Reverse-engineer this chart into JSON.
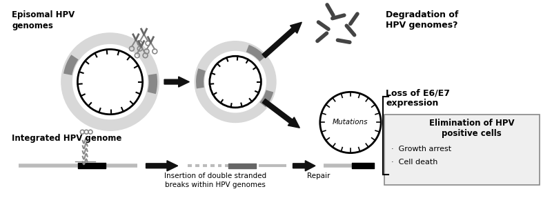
{
  "bg_color": "#ffffff",
  "fig_width": 8.0,
  "fig_height": 3.0,
  "dpi": 100,
  "episomal_label": "Episomal HPV\ngenomes",
  "integrated_label": "Integrated HPV genome",
  "degradation_label": "Degradation of\nHPV genomes?",
  "loss_label": "Loss of E6/E7\nexpression",
  "elimination_title": "Elimination of HPV\npositive cells",
  "bullet1": "Growth arrest",
  "bullet2": "Cell death",
  "insertion_label": "Insertion of double stranded\nbreaks within HPV genomes",
  "repair_label": "Repair",
  "mutations_label": "Mutations",
  "arrow_color": "#111111",
  "gray_ring_color": "#cccccc",
  "dark_seg_color": "#888888",
  "line_gray": "#bbbbbb",
  "black": "#000000",
  "frag_color": "#444444"
}
